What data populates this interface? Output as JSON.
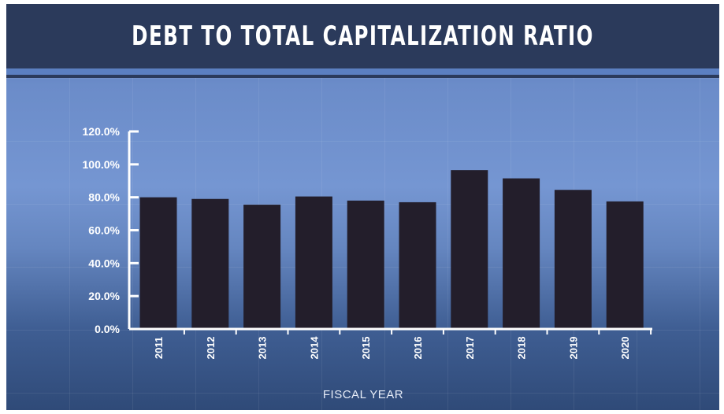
{
  "chart_data": {
    "type": "bar",
    "title": "DEBT TO TOTAL CAPITALIZATION RATIO",
    "xlabel": "FISCAL YEAR",
    "ylabel": "",
    "categories": [
      "2011",
      "2012",
      "2013",
      "2014",
      "2015",
      "2016",
      "2017",
      "2018",
      "2019",
      "2020"
    ],
    "values": [
      80.0,
      79.0,
      75.5,
      80.5,
      78.0,
      77.0,
      96.5,
      91.5,
      84.5,
      77.5
    ],
    "ylim": [
      0,
      120
    ],
    "y_ticks": [
      "0.0%",
      "20.0%",
      "40.0%",
      "60.0%",
      "80.0%",
      "100.0%",
      "120.0%"
    ],
    "bar_color": "#231e2b",
    "grid": false,
    "legend": "none"
  },
  "colors": {
    "header_bg": "#2b3a5b",
    "accent_line": "#5b7fc1",
    "background_top": "#4a69a6",
    "background_bottom": "#2f4a78",
    "text": "#ffffff"
  }
}
